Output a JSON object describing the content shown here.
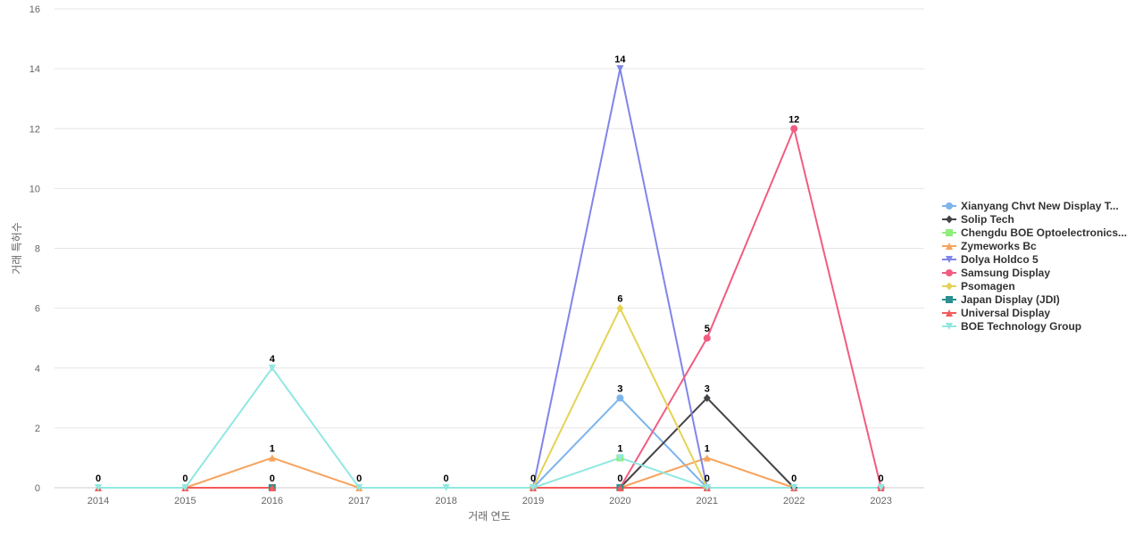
{
  "chart_data": {
    "type": "line",
    "title": "",
    "xlabel": "거래 연도",
    "ylabel": "거래 특허수",
    "x": [
      "2014",
      "2015",
      "2016",
      "2017",
      "2018",
      "2019",
      "2020",
      "2021",
      "2022",
      "2023"
    ],
    "ylim": [
      0,
      16
    ],
    "yticks": [
      0,
      2,
      4,
      6,
      8,
      10,
      12,
      14,
      16
    ],
    "grid": true,
    "legend_position": "right",
    "series": [
      {
        "name": "Xianyang Chvt New Display T...",
        "color": "#7cb5ec",
        "marker": "circle",
        "values": [
          null,
          null,
          null,
          null,
          null,
          0,
          3,
          0,
          null,
          null
        ]
      },
      {
        "name": "Solip Tech",
        "color": "#434348",
        "marker": "diamond",
        "values": [
          null,
          null,
          null,
          null,
          null,
          null,
          0,
          3,
          0,
          null
        ]
      },
      {
        "name": "Chengdu BOE Optoelectronics...",
        "color": "#90ed7d",
        "marker": "square",
        "values": [
          null,
          null,
          null,
          null,
          null,
          null,
          1,
          null,
          null,
          null
        ]
      },
      {
        "name": "Zymeworks Bc",
        "color": "#f7a35c",
        "marker": "triangle",
        "values": [
          null,
          0,
          1,
          0,
          null,
          null,
          0,
          1,
          0,
          null
        ]
      },
      {
        "name": "Dolya Holdco 5",
        "color": "#8085e9",
        "marker": "triangle-down",
        "values": [
          null,
          null,
          null,
          null,
          null,
          0,
          14,
          0,
          null,
          null
        ]
      },
      {
        "name": "Samsung Display",
        "color": "#f15c80",
        "marker": "circle",
        "values": [
          null,
          null,
          null,
          null,
          null,
          null,
          0,
          5,
          12,
          0
        ]
      },
      {
        "name": "Psomagen",
        "color": "#e4d354",
        "marker": "diamond",
        "values": [
          null,
          null,
          null,
          null,
          null,
          0,
          6,
          0,
          null,
          null
        ]
      },
      {
        "name": "Japan Display (JDI)",
        "color": "#2b908f",
        "marker": "square",
        "values": [
          null,
          null,
          0,
          null,
          null,
          null,
          0,
          null,
          null,
          null
        ]
      },
      {
        "name": "Universal Display",
        "color": "#f45b5b",
        "marker": "triangle",
        "values": [
          0,
          0,
          0,
          null,
          null,
          0,
          0,
          0,
          0,
          0
        ]
      },
      {
        "name": "BOE Technology Group",
        "color": "#91e8e1",
        "marker": "triangle-down",
        "values": [
          0,
          0,
          4,
          0,
          0,
          0,
          1,
          0,
          0,
          0
        ]
      }
    ],
    "data_labels": [
      {
        "x": "2014",
        "value": 0,
        "text": "0"
      },
      {
        "x": "2015",
        "value": 0,
        "text": "0"
      },
      {
        "x": "2016",
        "value": 4,
        "text": "4"
      },
      {
        "x": "2016",
        "value": 1,
        "text": "1"
      },
      {
        "x": "2016",
        "value": 0,
        "text": "0"
      },
      {
        "x": "2017",
        "value": 0,
        "text": "0"
      },
      {
        "x": "2018",
        "value": 0,
        "text": "0"
      },
      {
        "x": "2019",
        "value": 0,
        "text": "0"
      },
      {
        "x": "2020",
        "value": 14,
        "text": "14"
      },
      {
        "x": "2020",
        "value": 6,
        "text": "6"
      },
      {
        "x": "2020",
        "value": 3,
        "text": "3"
      },
      {
        "x": "2020",
        "value": 1,
        "text": "1"
      },
      {
        "x": "2020",
        "value": 0,
        "text": "0"
      },
      {
        "x": "2021",
        "value": 5,
        "text": "5"
      },
      {
        "x": "2021",
        "value": 3,
        "text": "3"
      },
      {
        "x": "2021",
        "value": 1,
        "text": "1"
      },
      {
        "x": "2021",
        "value": 0,
        "text": "0"
      },
      {
        "x": "2022",
        "value": 12,
        "text": "12"
      },
      {
        "x": "2022",
        "value": 0,
        "text": "0"
      },
      {
        "x": "2023",
        "value": 0,
        "text": "0"
      }
    ]
  }
}
